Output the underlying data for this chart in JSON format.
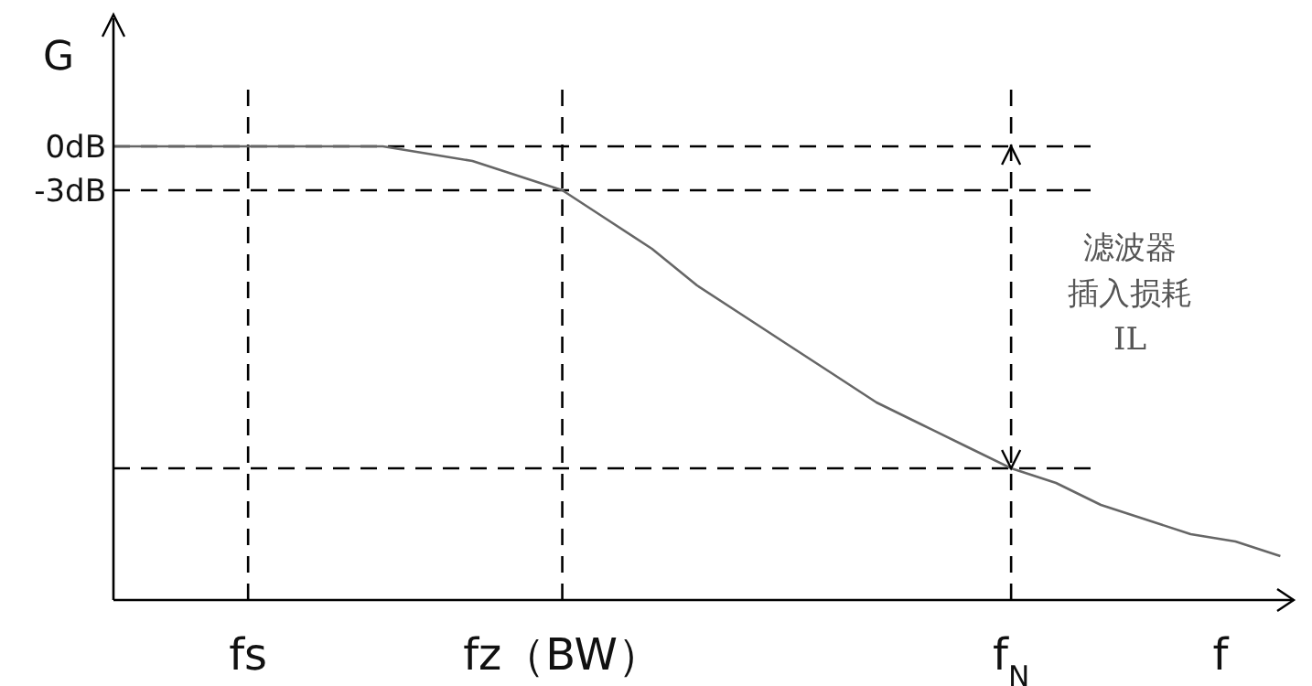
{
  "chart_data": {
    "type": "line",
    "ylabel": "G",
    "xlabel": "f",
    "categories": [
      null,
      null,
      null,
      "fs",
      null,
      null,
      null,
      null,
      null,
      null,
      "fz（BW）",
      null,
      null,
      null,
      null,
      null,
      null,
      null,
      null,
      null,
      "f$_{N}$",
      null,
      null,
      null,
      null,
      null,
      null
    ],
    "series": [
      {
        "color": "#666666",
        "values": [
          0,
          0,
          0,
          0,
          0,
          0,
          0,
          -0.5,
          -1,
          -2,
          -3,
          -5,
          -7,
          -9.5,
          -11.5,
          -13.5,
          -15.5,
          -17.5,
          -19,
          -20.5,
          -22,
          -23,
          -24.5,
          -25.5,
          -26.5,
          -27,
          -28
        ]
      }
    ],
    "ylim": [
      -31,
      9
    ],
    "yticks": [
      {
        "value": 0,
        "label": "0dB"
      },
      {
        "value": -3,
        "label": "-3dB"
      }
    ],
    "ref_lines": [
      {
        "axis": "x",
        "value": "fs",
        "line_style": "dashed",
        "color": "#000000"
      },
      {
        "axis": "x",
        "value": "fz（BW）",
        "line_style": "dashed",
        "color": "#000000"
      },
      {
        "axis": "x",
        "value": "f$_{N}$",
        "line_style": "dashed",
        "color": "#000000"
      },
      {
        "axis": "y",
        "value": 0,
        "line_style": "dashed",
        "color": "#000000"
      },
      {
        "axis": "y",
        "value": -3,
        "line_style": "dashed",
        "color": "#000000"
      },
      {
        "axis": "y",
        "value": -22,
        "line_style": "dashed",
        "color": "#000000"
      }
    ],
    "annotations": [
      "滤波器",
      "插入损耗",
      "IL"
    ],
    "grid": false,
    "marker": "none",
    "line_style": "solid"
  }
}
